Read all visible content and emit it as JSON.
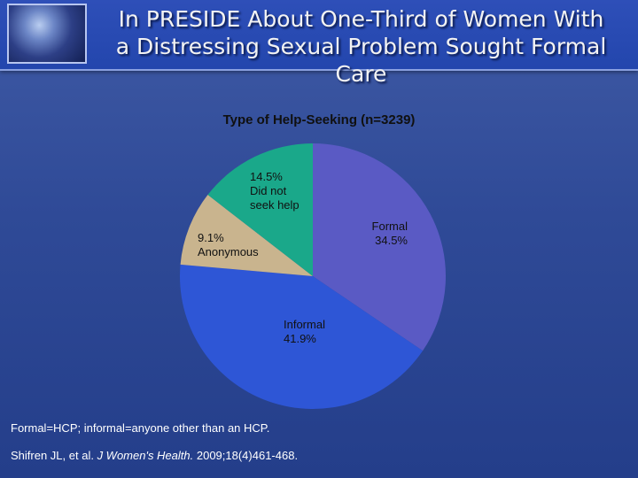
{
  "header": {
    "title_line1": "In PRESIDE About One-Third of Women With",
    "title_line2": "a Distressing Sexual Problem Sought Formal Care"
  },
  "chart_data": {
    "type": "pie",
    "title": "Type of Help-Seeking (n=3239)",
    "slices": [
      {
        "label": "Formal",
        "value": 34.5,
        "color": "#5a5ac4"
      },
      {
        "label": "Informal",
        "value": 41.9,
        "color": "#2e56d6"
      },
      {
        "label": "Anonymous",
        "value": 9.1,
        "color": "#c9b48e"
      },
      {
        "label": "Did not seek help",
        "value": 14.5,
        "color": "#1aa88a"
      }
    ],
    "labels": {
      "formal": "Formal\n34.5%",
      "informal": "Informal\n41.9%",
      "anonymous": "9.1%\nAnonymous",
      "not_seek": "14.5%\nDid not\nseek help"
    }
  },
  "footnotes": {
    "definition": "Formal=HCP; informal=anyone other than an HCP.",
    "citation_authors": "Shifren JL, et al. ",
    "citation_journal": "J Women's Health.",
    "citation_details": " 2009;18(4)461-468."
  }
}
